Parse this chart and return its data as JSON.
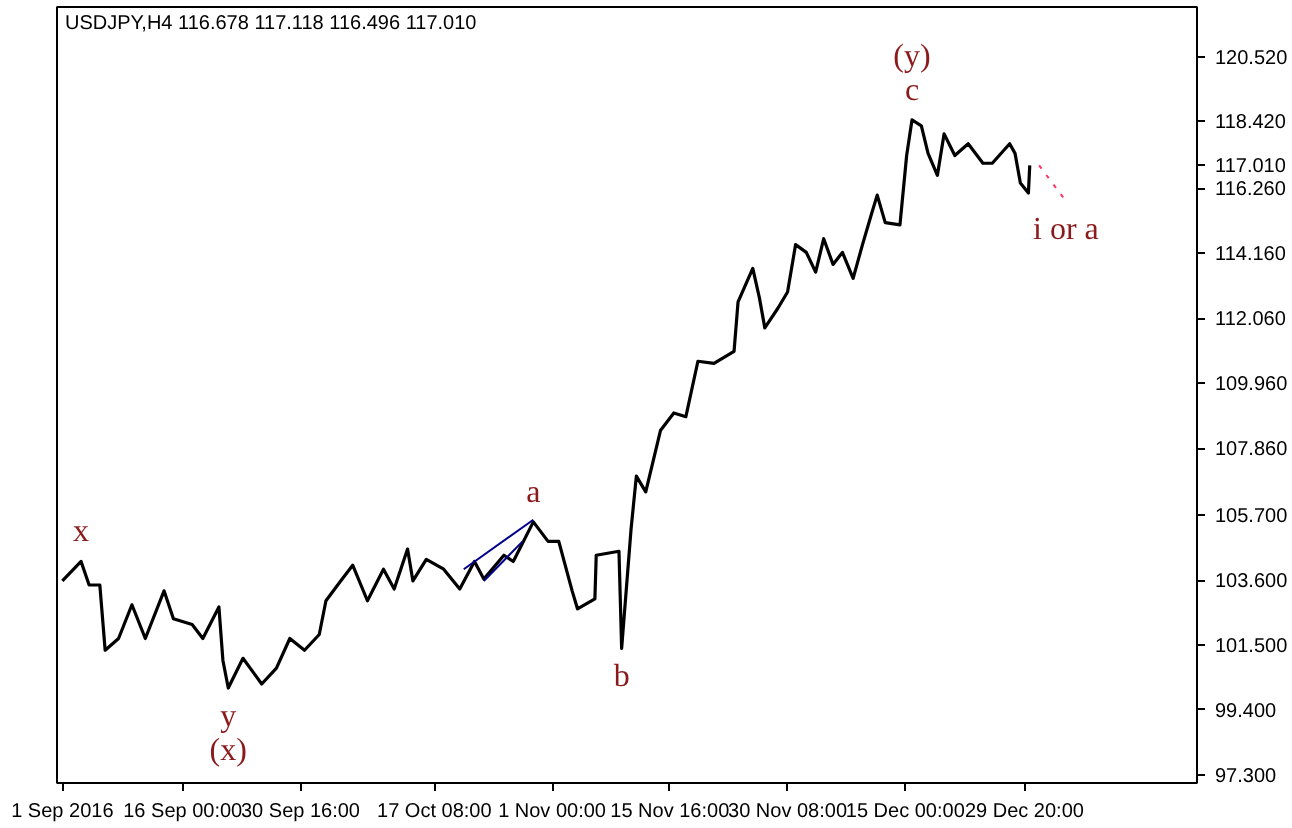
{
  "chart_data": {
    "type": "line",
    "title": "USDJPY,H4  116.678 117.118 116.496 117.010",
    "x": [
      "2016-09-01T00:00",
      "2016-09-03T08:00",
      "2016-09-04T08:00",
      "2016-09-05T16:00",
      "2016-09-06T08:00",
      "2016-09-08T00:00",
      "2016-09-09T16:00",
      "2016-09-11T08:00",
      "2016-09-13T16:00",
      "2016-09-14T20:00",
      "2016-09-17T04:00",
      "2016-09-18T12:00",
      "2016-09-20T12:00",
      "2016-09-21T00:00",
      "2016-09-21T16:00",
      "2016-09-23T12:00",
      "2016-09-25T20:00",
      "2016-09-27T16:00",
      "2016-09-29T08:00",
      "2016-10-01T04:00",
      "2016-10-03T00:00",
      "2016-10-03T20:00",
      "2016-10-05T16:00",
      "2016-10-07T04:00",
      "2016-10-09T00:00",
      "2016-10-11T00:00",
      "2016-10-12T08:00",
      "2016-10-14T00:00",
      "2016-10-14T16:00",
      "2016-10-16T08:00",
      "2016-10-18T12:00",
      "2016-10-20T12:00",
      "2016-10-22T08:00",
      "2016-10-23T12:00",
      "2016-10-26T00:00",
      "2016-10-27T04:00",
      "2016-10-29T16:00",
      "2016-10-31T12:00",
      "2016-11-01T20:00",
      "2016-11-03T12:00",
      "2016-11-04T04:00",
      "2016-11-06T08:00",
      "2016-11-06T12:00",
      "2016-11-09T08:00",
      "2016-11-09T16:00",
      "2016-11-10T20:00",
      "2016-11-11T12:00",
      "2016-11-12T16:00",
      "2016-11-14T12:00",
      "2016-11-16T04:00",
      "2016-11-17T16:00",
      "2016-11-19T04:00",
      "2016-11-21T04:00",
      "2016-11-23T16:00",
      "2016-11-24T04:00",
      "2016-11-26T00:00",
      "2016-11-26T20:00",
      "2016-11-27T12:00",
      "2016-11-29T04:00",
      "2016-11-30T08:00",
      "2016-12-01T08:00",
      "2016-12-02T16:00",
      "2016-12-03T20:00",
      "2016-12-04T20:00",
      "2016-12-06T00:00",
      "2016-12-07T04:00",
      "2016-12-08T12:00",
      "2016-12-09T16:00",
      "2016-12-10T20:00",
      "2016-12-11T12:00",
      "2016-12-12T12:00",
      "2016-12-14T08:00",
      "2016-12-15T04:00",
      "2016-12-15T20:00",
      "2016-12-17T00:00",
      "2016-12-17T20:00",
      "2016-12-19T00:00",
      "2016-12-19T20:00",
      "2016-12-21T04:00",
      "2016-12-22T20:00",
      "2016-12-24T16:00",
      "2016-12-25T20:00",
      "2016-12-28T00:00",
      "2016-12-28T16:00",
      "2016-12-29T08:00",
      "2016-12-30T08:00",
      "2016-12-30T12:00"
    ],
    "series": [
      {
        "color": "#000000",
        "values": [
          103.57,
          104.2,
          103.44,
          103.44,
          101.33,
          101.71,
          102.8,
          101.71,
          103.25,
          102.35,
          102.16,
          101.71,
          102.73,
          101.0,
          100.11,
          101.07,
          100.24,
          100.75,
          101.71,
          101.33,
          101.84,
          102.93,
          103.57,
          104.08,
          102.93,
          103.95,
          103.31,
          104.6,
          103.57,
          104.27,
          103.95,
          103.31,
          104.2,
          103.63,
          104.4,
          104.2,
          105.48,
          104.85,
          104.85,
          103.25,
          102.67,
          102.99,
          104.4,
          104.53,
          101.39,
          105.23,
          106.96,
          106.45,
          108.43,
          109.0,
          108.88,
          110.67,
          110.6,
          110.99,
          112.59,
          113.67,
          112.71,
          111.75,
          112.4,
          112.91,
          114.44,
          114.19,
          113.55,
          114.63,
          113.8,
          114.19,
          113.35,
          114.44,
          115.47,
          116.04,
          115.15,
          115.08,
          117.32,
          118.47,
          118.28,
          117.39,
          116.68,
          118.02,
          117.32,
          117.7,
          117.07,
          117.07,
          117.7,
          117.39,
          116.43,
          116.11,
          117.0
        ]
      },
      {
        "color": "#00008b",
        "x": [
          "2016-10-21T00:00",
          "2016-10-29T16:00"
        ],
        "values": [
          103.95,
          105.55
        ]
      },
      {
        "color": "#00008b",
        "x": [
          "2016-10-23T12:00",
          "2016-10-28T08:00"
        ],
        "values": [
          103.57,
          104.85
        ]
      },
      {
        "color": "#ff3366",
        "x": [
          "2016-12-31T16:00",
          "2017-01-04T00:00"
        ],
        "values": [
          117.0,
          115.85
        ],
        "line_style": "dotted"
      }
    ],
    "xlim": [
      "2016-08-31T08:00",
      "2017-01-20T08:00"
    ],
    "ylim": [
      97.04,
      122.12
    ],
    "xticks": [
      {
        "value": "2016-09-01T00:00",
        "label": "1 Sep 2016"
      },
      {
        "value": "2016-09-16T00:00",
        "label": "16 Sep 00:00"
      },
      {
        "value": "2016-09-30T16:00",
        "label": "30 Sep 16:00"
      },
      {
        "value": "2016-10-17T08:00",
        "label": "17 Oct 08:00"
      },
      {
        "value": "2016-11-01T00:00",
        "label": "1 Nov 00:00"
      },
      {
        "value": "2016-11-15T16:00",
        "label": "15 Nov 16:00"
      },
      {
        "value": "2016-11-30T08:00",
        "label": "30 Nov 08:00"
      },
      {
        "value": "2016-12-15T00:00",
        "label": "15 Dec 00:00"
      },
      {
        "value": "2016-12-29T20:00",
        "label": "29 Dec 20:00"
      }
    ],
    "yticks": [
      {
        "value": 97.3,
        "label": "97.300"
      },
      {
        "value": 99.4,
        "label": "99.400"
      },
      {
        "value": 101.5,
        "label": "101.500"
      },
      {
        "value": 103.6,
        "label": "103.600"
      },
      {
        "value": 105.7,
        "label": "105.700"
      },
      {
        "value": 107.86,
        "label": "107.860"
      },
      {
        "value": 109.96,
        "label": "109.960"
      },
      {
        "value": 112.06,
        "label": "112.060"
      },
      {
        "value": 114.16,
        "label": "114.160"
      },
      {
        "value": 116.26,
        "label": "116.260"
      },
      {
        "value": 117.01,
        "label": "117.010"
      },
      {
        "value": 118.42,
        "label": "118.420"
      },
      {
        "value": 120.52,
        "label": "120.520"
      }
    ],
    "annotations": [
      {
        "text": "x",
        "x": "2016-09-03T08:00",
        "y": 104.2
      },
      {
        "text": "y",
        "x": "2016-09-21T16:00",
        "y": 100.11
      },
      {
        "text": "(x)",
        "x": "2016-09-21T16:00",
        "y": 100.11
      },
      {
        "text": "a",
        "x": "2016-10-29T16:00",
        "y": 105.48
      },
      {
        "text": "b",
        "x": "2016-11-09T16:00",
        "y": 101.39
      },
      {
        "text": "c",
        "x": "2016-12-15T20:00",
        "y": 118.47
      },
      {
        "text": "(y)",
        "x": "2016-12-15T20:00",
        "y": 118.47
      },
      {
        "text": "i or a",
        "x": "2017-01-04T00:00",
        "y": 115.85
      }
    ],
    "grid": false,
    "marker": "none",
    "line_style": "solid"
  }
}
